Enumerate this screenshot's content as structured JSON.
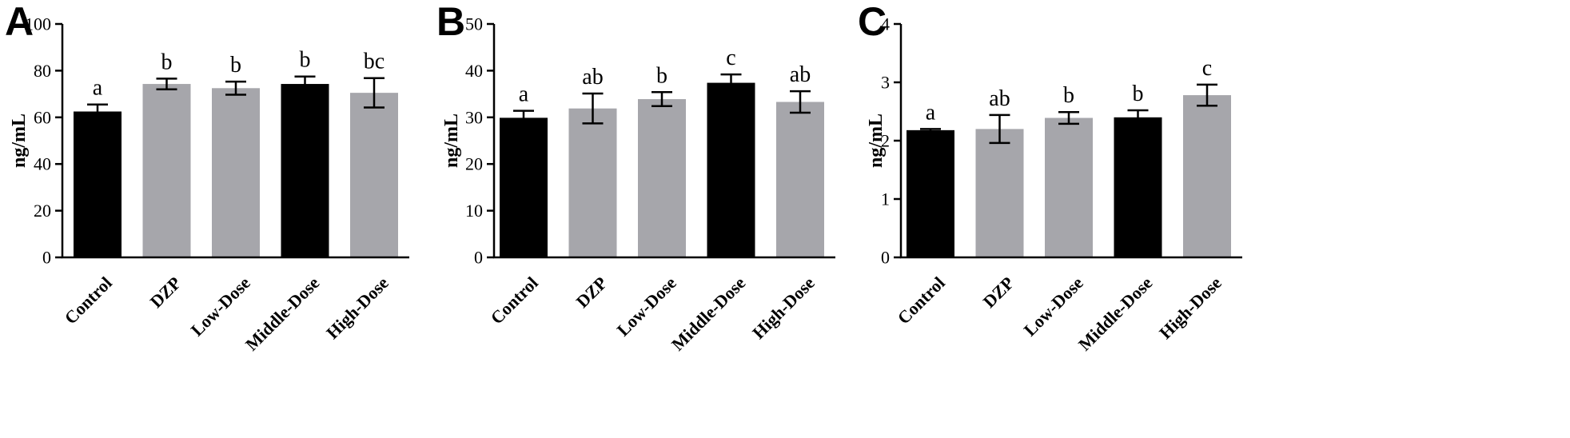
{
  "colors": {
    "black_bar": "#000000",
    "gray_bar": "#a6a6ab"
  },
  "chart_data": [
    {
      "type": "bar",
      "panel": "A",
      "categories": [
        "Control",
        "DZP",
        "Low-Dose",
        "Middle-Dose",
        "High-Dose"
      ],
      "values": [
        62.5,
        74.3,
        72.5,
        74.3,
        70.5
      ],
      "errors": [
        3.0,
        2.3,
        2.8,
        3.2,
        6.3
      ],
      "bar_colors": [
        "black_bar",
        "gray_bar",
        "gray_bar",
        "black_bar",
        "gray_bar"
      ],
      "significance": [
        "a",
        "b",
        "b",
        "b",
        "bc"
      ],
      "ylabel": "ng/mL",
      "ylim": [
        0,
        100
      ],
      "yticks": [
        0,
        20,
        40,
        60,
        80,
        100
      ],
      "grid": false
    },
    {
      "type": "bar",
      "panel": "B",
      "categories": [
        "Control",
        "DZP",
        "Low-Dose",
        "Middle-Dose",
        "High-Dose"
      ],
      "values": [
        29.9,
        31.9,
        33.9,
        37.4,
        33.3
      ],
      "errors": [
        1.5,
        3.2,
        1.5,
        1.8,
        2.3
      ],
      "bar_colors": [
        "black_bar",
        "gray_bar",
        "gray_bar",
        "black_bar",
        "gray_bar"
      ],
      "significance": [
        "a",
        "ab",
        "b",
        "c",
        "ab"
      ],
      "ylabel": "ng/mL",
      "ylim": [
        0,
        50
      ],
      "yticks": [
        0,
        10,
        20,
        30,
        40,
        50
      ],
      "grid": false
    },
    {
      "type": "bar",
      "panel": "C",
      "categories": [
        "Control",
        "DZP",
        "Low-Dose",
        "Middle-Dose",
        "High-Dose"
      ],
      "values": [
        2.18,
        2.2,
        2.39,
        2.4,
        2.78
      ],
      "errors": [
        0.02,
        0.24,
        0.1,
        0.12,
        0.18
      ],
      "bar_colors": [
        "black_bar",
        "gray_bar",
        "gray_bar",
        "black_bar",
        "gray_bar"
      ],
      "significance": [
        "a",
        "ab",
        "b",
        "b",
        "c"
      ],
      "ylabel": "ng/mL",
      "ylim": [
        0,
        4
      ],
      "yticks": [
        0,
        1,
        2,
        3,
        4
      ],
      "grid": false
    }
  ]
}
